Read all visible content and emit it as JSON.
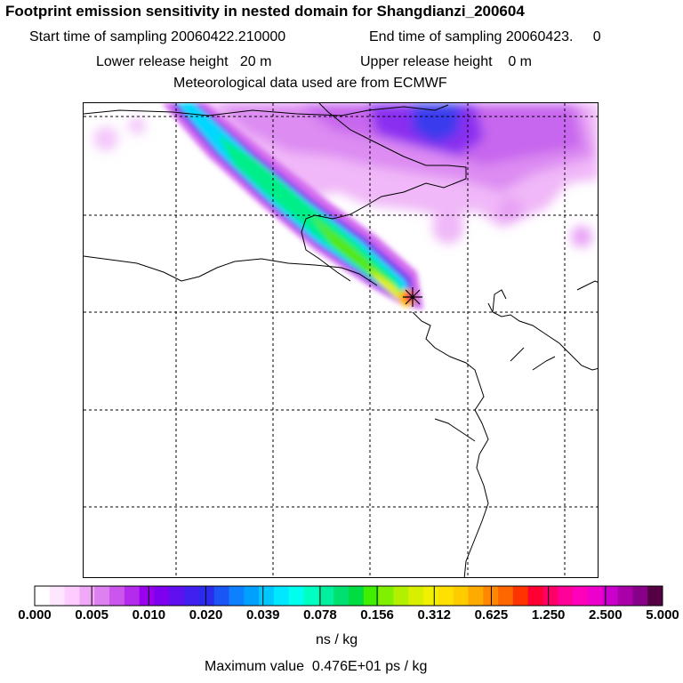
{
  "header": {
    "title": "Footprint emission sensitivity in nested domain for Shangdianzi_200604",
    "start_time": "Start time of sampling 20060422.210000",
    "end_time": "End time of sampling 20060423.     0",
    "lower_height": "Lower release height   20 m",
    "upper_height": "Upper release height    0 m",
    "met_data": "Meteorological data used are from ECMWF"
  },
  "colorbar": {
    "ticks": [
      "0.000",
      "0.005",
      "0.010",
      "0.020",
      "0.039",
      "0.078",
      "0.156",
      "0.312",
      "0.625",
      "1.250",
      "2.500",
      "5.000"
    ],
    "colors": [
      "#ffffff",
      "#ffe6ff",
      "#ffccff",
      "#f0a8f8",
      "#dd80f0",
      "#cc55ee",
      "#b52bee",
      "#9900ee",
      "#7f00ee",
      "#6010ee",
      "#4020ee",
      "#2b2bee",
      "#1a55f5",
      "#0d80ff",
      "#00a0ff",
      "#00c8ff",
      "#00e8ff",
      "#00ffee",
      "#00ffc0",
      "#00f0a0",
      "#00e070",
      "#00dd40",
      "#40ee00",
      "#80f000",
      "#b0f000",
      "#d8f000",
      "#f0f000",
      "#ffe000",
      "#ffcc00",
      "#ffaa00",
      "#ff8800",
      "#ff6600",
      "#ff3300",
      "#ff0033",
      "#ff0066",
      "#ff0099",
      "#ff00bb",
      "#ee00cc",
      "#cc00cc",
      "#aa00aa",
      "#880088",
      "#550044"
    ],
    "unit": "ns / kg",
    "max_value": "Maximum value  0.476E+01 ps / kg"
  },
  "map": {
    "receptor": "Shangdianzi",
    "gridlines": 5
  }
}
